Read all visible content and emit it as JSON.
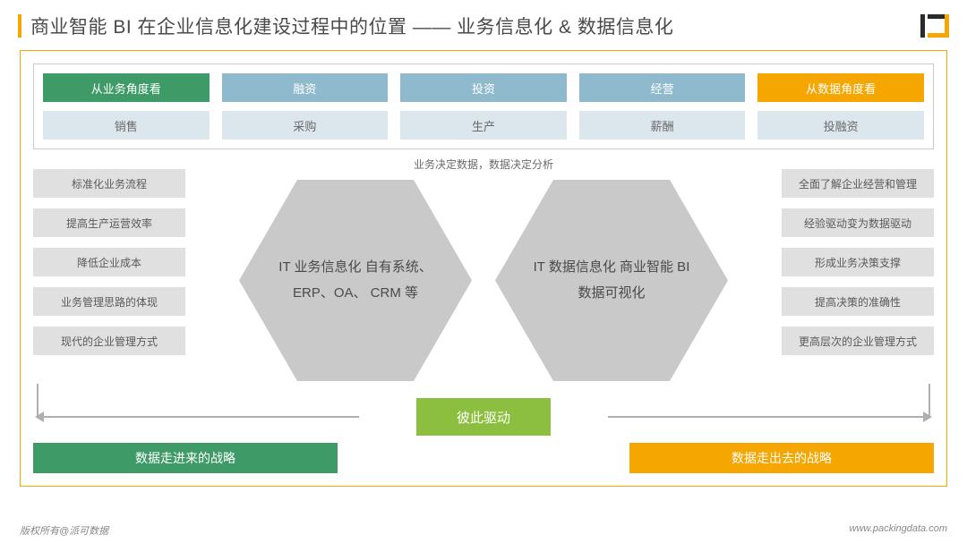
{
  "title": "商业智能 BI 在企业信息化建设过程中的位置 —— 业务信息化 & 数据信息化",
  "colors": {
    "accent_amber": "#f5a600",
    "green": "#3e9b67",
    "blue": "#8fb9cc",
    "light_blue": "#dbe6ed",
    "hex_gray": "#c9c9c9",
    "chip_gray": "#e0e0e0",
    "lime": "#8cbf3f",
    "arrow_gray": "#aeb0af",
    "text": "#5a5a5a",
    "white": "#ffffff"
  },
  "top_row1": [
    {
      "label": "从业务角度看",
      "style": "green"
    },
    {
      "label": "融资",
      "style": "blue"
    },
    {
      "label": "投资",
      "style": "blue"
    },
    {
      "label": "经营",
      "style": "blue"
    },
    {
      "label": "从数据角度看",
      "style": "amber"
    }
  ],
  "top_row2": [
    {
      "label": "销售",
      "style": "light"
    },
    {
      "label": "采购",
      "style": "light"
    },
    {
      "label": "生产",
      "style": "light"
    },
    {
      "label": "薪酬",
      "style": "light"
    },
    {
      "label": "投融资",
      "style": "light"
    }
  ],
  "mid_caption": "业务决定数据，数据决定分析",
  "left_list": [
    "标准化业务流程",
    "提高生产运营效率",
    "降低企业成本",
    "业务管理思路的体现",
    "现代的企业管理方式"
  ],
  "right_list": [
    "全面了解企业经营和管理",
    "经验驱动变为数据驱动",
    "形成业务决策支撑",
    "提高决策的准确性",
    "更高层次的企业管理方式"
  ],
  "hex_left": "IT 业务信息化\n自有系统、ERP、OA、\nCRM 等",
  "hex_right": "IT 数据信息化\n商业智能 BI\n数据可视化",
  "driver": "彼此驱动",
  "band_left": "数据走进来的战略",
  "band_right": "数据走出去的战略",
  "footer_left": "版权所有@派可数据",
  "footer_right": "www.packingdata.com"
}
